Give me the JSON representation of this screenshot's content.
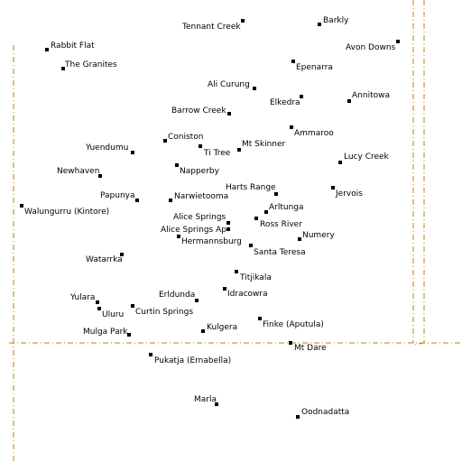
{
  "map": {
    "colors": {
      "border": "#b8860b",
      "marker": "#000000",
      "text": "#000000",
      "background": "#ffffff"
    },
    "places": [
      {
        "id": "tennant-creek",
        "name": "Tennant Creek"
      },
      {
        "id": "barkly",
        "name": "Barkly"
      },
      {
        "id": "rabbit-flat",
        "name": "Rabbit Flat"
      },
      {
        "id": "avon-downs",
        "name": "Avon Downs"
      },
      {
        "id": "the-granites",
        "name": "The Granites"
      },
      {
        "id": "epenarra",
        "name": "Epenarra"
      },
      {
        "id": "ali-curung",
        "name": "Ali Curung"
      },
      {
        "id": "annitowa",
        "name": "Annitowa"
      },
      {
        "id": "elkedra",
        "name": "Elkedra"
      },
      {
        "id": "barrow-creek",
        "name": "Barrow Creek"
      },
      {
        "id": "ammaroo",
        "name": "Ammaroo"
      },
      {
        "id": "coniston",
        "name": "Coniston"
      },
      {
        "id": "mt-skinner",
        "name": "Mt Skinner"
      },
      {
        "id": "yuendumu",
        "name": "Yuendumu"
      },
      {
        "id": "ti-tree",
        "name": "Ti Tree"
      },
      {
        "id": "lucy-creek",
        "name": "Lucy Creek"
      },
      {
        "id": "newhaven",
        "name": "Newhaven"
      },
      {
        "id": "napperby",
        "name": "Napperby"
      },
      {
        "id": "harts-range",
        "name": "Harts Range"
      },
      {
        "id": "jervois",
        "name": "Jervois"
      },
      {
        "id": "papunya",
        "name": "Papunya"
      },
      {
        "id": "narwietooma",
        "name": "Narwietooma"
      },
      {
        "id": "arltunga",
        "name": "Arltunga"
      },
      {
        "id": "walungurru",
        "name": "Walungurru (Kintore)"
      },
      {
        "id": "alice-springs",
        "name": "Alice Springs"
      },
      {
        "id": "ross-river",
        "name": "Ross River"
      },
      {
        "id": "alice-springs-ap",
        "name": "Alice Springs Ap"
      },
      {
        "id": "numery",
        "name": "Numery"
      },
      {
        "id": "hermannsburg",
        "name": "Hermannsburg"
      },
      {
        "id": "santa-teresa",
        "name": "Santa Teresa"
      },
      {
        "id": "watarrka",
        "name": "Watarrka"
      },
      {
        "id": "titjikala",
        "name": "Titjikala"
      },
      {
        "id": "idracowra",
        "name": "Idracowra"
      },
      {
        "id": "yulara",
        "name": "Yulara"
      },
      {
        "id": "erldunda",
        "name": "Erldunda"
      },
      {
        "id": "uluru",
        "name": "Uluru"
      },
      {
        "id": "curtin-springs",
        "name": "Curtin Springs"
      },
      {
        "id": "finke",
        "name": "Finke (Aputula)"
      },
      {
        "id": "mulga-park",
        "name": "Mulga Park"
      },
      {
        "id": "kulgera",
        "name": "Kulgera"
      },
      {
        "id": "mt-dare",
        "name": "Mt Dare"
      },
      {
        "id": "pukatja",
        "name": "Pukatja (Ernabella)"
      },
      {
        "id": "marla",
        "name": "Marla"
      },
      {
        "id": "oodnadatta",
        "name": "Oodnadatta"
      }
    ]
  }
}
